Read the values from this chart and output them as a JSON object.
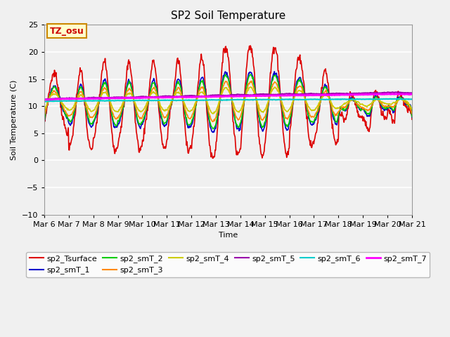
{
  "title": "SP2 Soil Temperature",
  "ylabel": "Soil Temperature (C)",
  "xlabel": "Time",
  "ylim": [
    -10,
    25
  ],
  "xlim": [
    0,
    360
  ],
  "n_points": 720,
  "background_color": "#f0f0f0",
  "grid_color": "#ffffff",
  "annotation_text": "TZ_osu",
  "annotation_color": "#cc0000",
  "annotation_bg": "#ffffcc",
  "annotation_border": "#cc8800",
  "series": {
    "sp2_Tsurface": {
      "color": "#dd0000",
      "lw": 1.2
    },
    "sp2_smT_1": {
      "color": "#0000cc",
      "lw": 1.2
    },
    "sp2_smT_2": {
      "color": "#00cc00",
      "lw": 1.2
    },
    "sp2_smT_3": {
      "color": "#ff8800",
      "lw": 1.2
    },
    "sp2_smT_4": {
      "color": "#cccc00",
      "lw": 1.2
    },
    "sp2_smT_5": {
      "color": "#9900aa",
      "lw": 1.5
    },
    "sp2_smT_6": {
      "color": "#00cccc",
      "lw": 1.5
    },
    "sp2_smT_7": {
      "color": "#ff00ff",
      "lw": 2.0
    }
  },
  "xtick_labels": [
    "Mar 6",
    "Mar 7",
    "Mar 8",
    "Mar 9",
    "Mar 10",
    "Mar 11",
    "Mar 12",
    "Mar 13",
    "Mar 14",
    "Mar 15",
    "Mar 16",
    "Mar 17",
    "Mar 18",
    "Mar 19",
    "Mar 20",
    "Mar 21"
  ],
  "xtick_positions": [
    0,
    24,
    48,
    72,
    96,
    120,
    144,
    168,
    192,
    216,
    240,
    264,
    288,
    312,
    336,
    360
  ],
  "ytick_positions": [
    -10,
    -5,
    0,
    5,
    10,
    15,
    20,
    25
  ]
}
